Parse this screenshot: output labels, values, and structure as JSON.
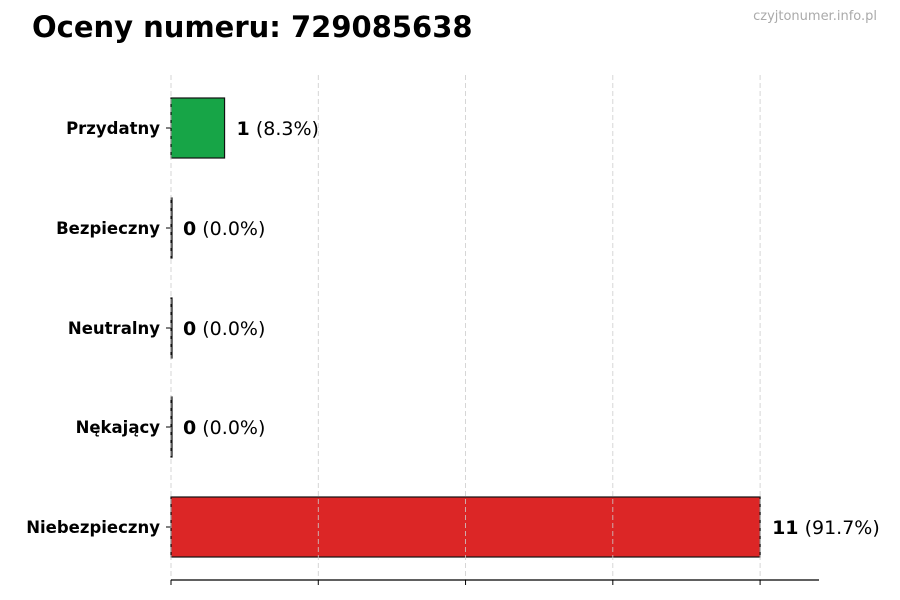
{
  "chart_data": {
    "type": "bar",
    "orientation": "horizontal",
    "title": "Oceny numeru: 729085638",
    "watermark": "czyjtonumer.info.pl",
    "categories": [
      "Przydatny",
      "Bezpieczny",
      "Neutralny",
      "Nękający",
      "Niebezpieczny"
    ],
    "values": [
      1,
      0,
      0,
      0,
      11
    ],
    "percent_labels": [
      "(8.3%)",
      "(0.0%)",
      "(0.0%)",
      "(0.0%)",
      "(91.7%)"
    ],
    "colors": [
      "#17a547",
      "#888888",
      "#888888",
      "#888888",
      "#dc2626"
    ],
    "xlim": [
      0,
      12.1
    ],
    "x_gridlines": [
      0,
      2.75,
      5.5,
      8.25,
      11
    ],
    "grid": "x-dashed",
    "xlabel": "",
    "ylabel": ""
  }
}
